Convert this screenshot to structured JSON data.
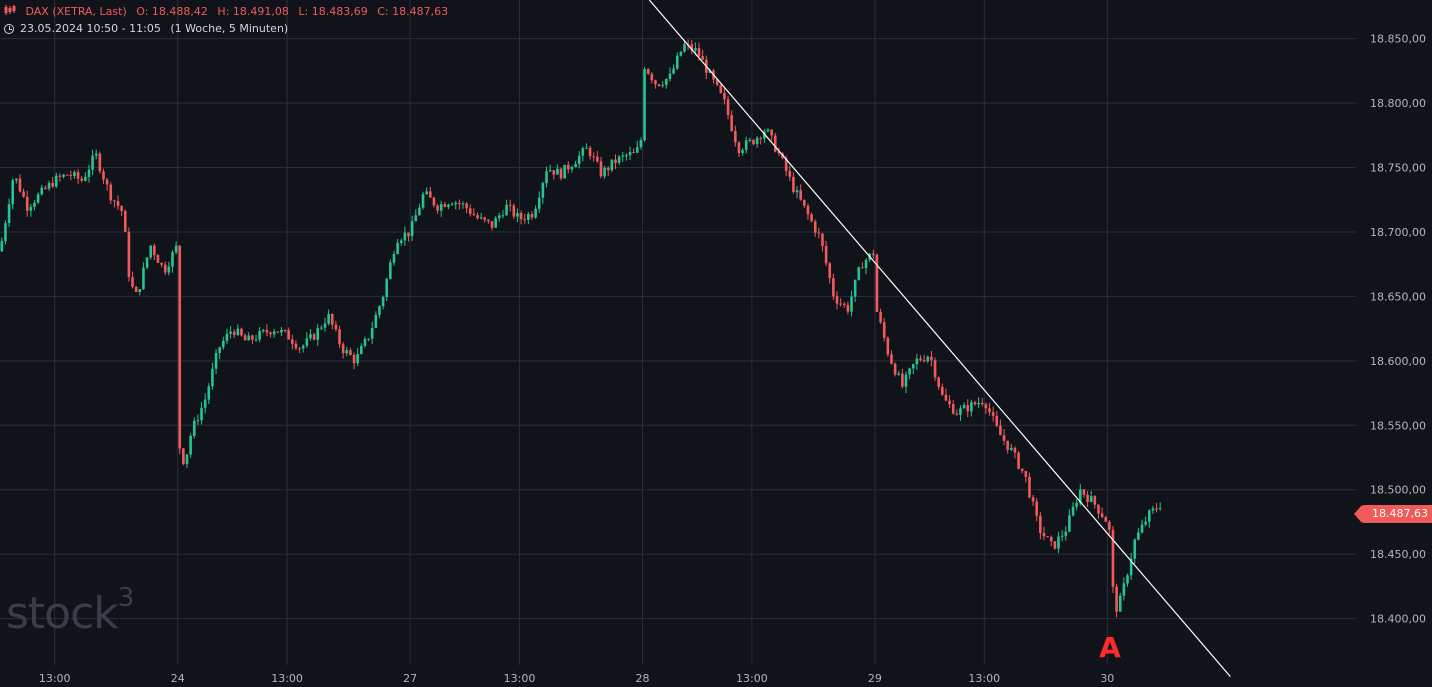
{
  "header": {
    "symbol": "DAX (XETRA, Last)",
    "open": "O: 18.488,42",
    "high": "H: 18.491,08",
    "low": "L: 18.483,69",
    "close": "C: 18.487,63",
    "timestamp": "23.05.2024 10:50 - 11:05",
    "range": "(1 Woche, 5 Minuten)"
  },
  "watermark": "stock",
  "watermark_sup": "3",
  "marker_label": "A",
  "last_price_label": "18.487,63",
  "colors": {
    "up": "#26c58f",
    "down": "#f05a5a",
    "background": "#11131a",
    "grid": "#2a2e39",
    "trendline": "#ffffff",
    "marker": "#ff2b2b"
  },
  "chart_data": {
    "type": "candlestick",
    "ylim": [
      18364,
      18880
    ],
    "y_ticks": [
      {
        "value": 18850,
        "label": "18.850,00"
      },
      {
        "value": 18800,
        "label": "18.800,00"
      },
      {
        "value": 18750,
        "label": "18.750,00"
      },
      {
        "value": 18700,
        "label": "18.700,00"
      },
      {
        "value": 18650,
        "label": "18.650,00"
      },
      {
        "value": 18600,
        "label": "18.600,00"
      },
      {
        "value": 18550,
        "label": "18.550,00"
      },
      {
        "value": 18500,
        "label": "18.500,00"
      },
      {
        "value": 18450,
        "label": "18.450,00"
      },
      {
        "value": 18400,
        "label": "18.400,00"
      }
    ],
    "x_ticks": [
      {
        "label": "13:00",
        "t": 0.04
      },
      {
        "label": "24",
        "t": 0.13
      },
      {
        "label": "13:00",
        "t": 0.21
      },
      {
        "label": "27",
        "t": 0.3
      },
      {
        "label": "13:00",
        "t": 0.38
      },
      {
        "label": "28",
        "t": 0.47
      },
      {
        "label": "13:00",
        "t": 0.55
      },
      {
        "label": "29",
        "t": 0.64
      },
      {
        "label": "13:00",
        "t": 0.72
      },
      {
        "label": "30",
        "t": 0.81
      }
    ],
    "x_span_end": 0.85,
    "price_path": [
      [
        0.0,
        18685
      ],
      [
        0.01,
        18745
      ],
      [
        0.02,
        18720
      ],
      [
        0.03,
        18730
      ],
      [
        0.04,
        18740
      ],
      [
        0.05,
        18745
      ],
      [
        0.06,
        18740
      ],
      [
        0.07,
        18760
      ],
      [
        0.08,
        18730
      ],
      [
        0.09,
        18715
      ],
      [
        0.095,
        18660
      ],
      [
        0.1,
        18650
      ],
      [
        0.11,
        18690
      ],
      [
        0.12,
        18670
      ],
      [
        0.13,
        18690
      ],
      [
        0.131,
        18535
      ],
      [
        0.135,
        18520
      ],
      [
        0.14,
        18545
      ],
      [
        0.15,
        18570
      ],
      [
        0.16,
        18610
      ],
      [
        0.17,
        18625
      ],
      [
        0.18,
        18615
      ],
      [
        0.19,
        18620
      ],
      [
        0.2,
        18625
      ],
      [
        0.21,
        18620
      ],
      [
        0.22,
        18610
      ],
      [
        0.23,
        18620
      ],
      [
        0.24,
        18635
      ],
      [
        0.25,
        18610
      ],
      [
        0.26,
        18600
      ],
      [
        0.27,
        18620
      ],
      [
        0.28,
        18650
      ],
      [
        0.29,
        18695
      ],
      [
        0.3,
        18700
      ],
      [
        0.31,
        18730
      ],
      [
        0.32,
        18720
      ],
      [
        0.33,
        18725
      ],
      [
        0.34,
        18720
      ],
      [
        0.35,
        18710
      ],
      [
        0.36,
        18705
      ],
      [
        0.37,
        18720
      ],
      [
        0.38,
        18710
      ],
      [
        0.39,
        18715
      ],
      [
        0.4,
        18750
      ],
      [
        0.41,
        18745
      ],
      [
        0.42,
        18755
      ],
      [
        0.43,
        18765
      ],
      [
        0.44,
        18745
      ],
      [
        0.45,
        18755
      ],
      [
        0.46,
        18760
      ],
      [
        0.465,
        18760
      ],
      [
        0.47,
        18775
      ],
      [
        0.471,
        18830
      ],
      [
        0.48,
        18815
      ],
      [
        0.49,
        18820
      ],
      [
        0.5,
        18845
      ],
      [
        0.51,
        18840
      ],
      [
        0.52,
        18820
      ],
      [
        0.53,
        18800
      ],
      [
        0.54,
        18765
      ],
      [
        0.55,
        18770
      ],
      [
        0.56,
        18780
      ],
      [
        0.57,
        18760
      ],
      [
        0.58,
        18735
      ],
      [
        0.59,
        18715
      ],
      [
        0.6,
        18695
      ],
      [
        0.61,
        18650
      ],
      [
        0.62,
        18640
      ],
      [
        0.63,
        18675
      ],
      [
        0.64,
        18685
      ],
      [
        0.641,
        18640
      ],
      [
        0.65,
        18605
      ],
      [
        0.66,
        18580
      ],
      [
        0.67,
        18600
      ],
      [
        0.68,
        18605
      ],
      [
        0.69,
        18570
      ],
      [
        0.7,
        18560
      ],
      [
        0.71,
        18565
      ],
      [
        0.72,
        18570
      ],
      [
        0.73,
        18545
      ],
      [
        0.74,
        18530
      ],
      [
        0.75,
        18510
      ],
      [
        0.76,
        18470
      ],
      [
        0.77,
        18455
      ],
      [
        0.78,
        18470
      ],
      [
        0.79,
        18500
      ],
      [
        0.8,
        18490
      ],
      [
        0.81,
        18475
      ],
      [
        0.812,
        18465
      ],
      [
        0.815,
        18405
      ],
      [
        0.82,
        18415
      ],
      [
        0.83,
        18460
      ],
      [
        0.84,
        18480
      ],
      [
        0.85,
        18490
      ]
    ],
    "trendline": {
      "start": {
        "t": 0.475,
        "value": 18880
      },
      "end": {
        "t": 0.9,
        "value": 18355
      }
    },
    "marker": {
      "label": "A",
      "t": 0.815,
      "value": 18405
    },
    "last_price": 18487.63,
    "grid": true
  }
}
